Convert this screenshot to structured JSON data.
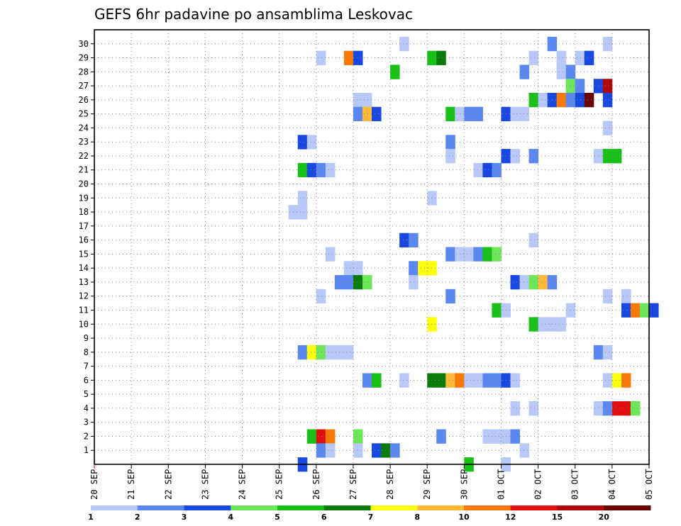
{
  "chart_data": {
    "type": "heatmap",
    "title": "GEFS 6hr padavine po ansamblima Leskovac",
    "xlabel": "",
    "ylabel": "",
    "x_ticks": [
      "20 SEP",
      "21 SEP",
      "22 SEP",
      "23 SEP",
      "24 SEP",
      "25 SEP",
      "26 SEP",
      "27 SEP",
      "28 SEP",
      "29 SEP",
      "30 SEP",
      "01 OCT",
      "02 OCT",
      "03 OCT",
      "04 OCT",
      "05 OCT"
    ],
    "y_ticks": [
      1,
      2,
      3,
      4,
      5,
      6,
      7,
      8,
      9,
      10,
      11,
      12,
      13,
      14,
      15,
      16,
      17,
      18,
      19,
      20,
      21,
      22,
      23,
      24,
      25,
      26,
      27,
      28,
      29,
      30
    ],
    "x_range_days": [
      0,
      15
    ],
    "y_range": [
      0,
      30
    ],
    "grid": true,
    "steps_per_day": 4,
    "levels": [
      1,
      2,
      3,
      4,
      5,
      6,
      7,
      8,
      10,
      12,
      15,
      20
    ],
    "level_labels": [
      "1",
      "2",
      "3",
      "4",
      "5",
      "6",
      "7",
      "8",
      "10",
      "12",
      "15",
      "20"
    ],
    "colors": [
      "#b8c8f8",
      "#5a88f0",
      "#1848e0",
      "#6ee65a",
      "#18c018",
      "#0a7a0a",
      "#ffff10",
      "#ffb838",
      "#f87808",
      "#e01010",
      "#b00808",
      "#6a0404"
    ],
    "legend_position": "bottom",
    "cells": [
      {
        "member": 30,
        "step": 33,
        "class": 0
      },
      {
        "member": 30,
        "step": 49,
        "class": 1
      },
      {
        "member": 30,
        "step": 55,
        "class": 0
      },
      {
        "member": 29,
        "step": 24,
        "class": 0
      },
      {
        "member": 29,
        "step": 27,
        "class": 8
      },
      {
        "member": 29,
        "step": 28,
        "class": 2
      },
      {
        "member": 29,
        "step": 36,
        "class": 4
      },
      {
        "member": 29,
        "step": 37,
        "class": 5
      },
      {
        "member": 29,
        "step": 47,
        "class": 0
      },
      {
        "member": 29,
        "step": 50,
        "class": 0
      },
      {
        "member": 29,
        "step": 52,
        "class": 0
      },
      {
        "member": 29,
        "step": 53,
        "class": 2
      },
      {
        "member": 28,
        "step": 32,
        "class": 4
      },
      {
        "member": 28,
        "step": 46,
        "class": 1
      },
      {
        "member": 28,
        "step": 50,
        "class": 0
      },
      {
        "member": 28,
        "step": 51,
        "class": 1
      },
      {
        "member": 27,
        "step": 51,
        "class": 3
      },
      {
        "member": 27,
        "step": 52,
        "class": 1
      },
      {
        "member": 27,
        "step": 54,
        "class": 2
      },
      {
        "member": 27,
        "step": 55,
        "class": 10
      },
      {
        "member": 26,
        "step": 28,
        "class": 0
      },
      {
        "member": 26,
        "step": 29,
        "class": 0
      },
      {
        "member": 26,
        "step": 47,
        "class": 4
      },
      {
        "member": 26,
        "step": 48,
        "class": 0
      },
      {
        "member": 26,
        "step": 49,
        "class": 2
      },
      {
        "member": 26,
        "step": 50,
        "class": 8
      },
      {
        "member": 26,
        "step": 51,
        "class": 1
      },
      {
        "member": 26,
        "step": 52,
        "class": 2
      },
      {
        "member": 26,
        "step": 53,
        "class": 11
      },
      {
        "member": 26,
        "step": 55,
        "class": 2
      },
      {
        "member": 25,
        "step": 28,
        "class": 1
      },
      {
        "member": 25,
        "step": 29,
        "class": 7
      },
      {
        "member": 25,
        "step": 30,
        "class": 2
      },
      {
        "member": 25,
        "step": 38,
        "class": 4
      },
      {
        "member": 25,
        "step": 39,
        "class": 0
      },
      {
        "member": 25,
        "step": 40,
        "class": 1
      },
      {
        "member": 25,
        "step": 41,
        "class": 1
      },
      {
        "member": 25,
        "step": 44,
        "class": 2
      },
      {
        "member": 25,
        "step": 45,
        "class": 0
      },
      {
        "member": 25,
        "step": 46,
        "class": 0
      },
      {
        "member": 24,
        "step": 55,
        "class": 0
      },
      {
        "member": 23,
        "step": 22,
        "class": 2
      },
      {
        "member": 23,
        "step": 23,
        "class": 0
      },
      {
        "member": 23,
        "step": 38,
        "class": 1
      },
      {
        "member": 22,
        "step": 38,
        "class": 0
      },
      {
        "member": 22,
        "step": 44,
        "class": 2
      },
      {
        "member": 22,
        "step": 45,
        "class": 0
      },
      {
        "member": 22,
        "step": 47,
        "class": 1
      },
      {
        "member": 22,
        "step": 54,
        "class": 0
      },
      {
        "member": 22,
        "step": 55,
        "class": 4
      },
      {
        "member": 22,
        "step": 56,
        "class": 4
      },
      {
        "member": 21,
        "step": 22,
        "class": 4
      },
      {
        "member": 21,
        "step": 23,
        "class": 2
      },
      {
        "member": 21,
        "step": 24,
        "class": 1
      },
      {
        "member": 21,
        "step": 25,
        "class": 0
      },
      {
        "member": 21,
        "step": 41,
        "class": 0
      },
      {
        "member": 21,
        "step": 42,
        "class": 2
      },
      {
        "member": 21,
        "step": 43,
        "class": 1
      },
      {
        "member": 19,
        "step": 22,
        "class": 0
      },
      {
        "member": 19,
        "step": 36,
        "class": 0
      },
      {
        "member": 18,
        "step": 21,
        "class": 0
      },
      {
        "member": 18,
        "step": 22,
        "class": 0
      },
      {
        "member": 16,
        "step": 33,
        "class": 2
      },
      {
        "member": 16,
        "step": 34,
        "class": 1
      },
      {
        "member": 16,
        "step": 47,
        "class": 0
      },
      {
        "member": 15,
        "step": 25,
        "class": 0
      },
      {
        "member": 15,
        "step": 38,
        "class": 1
      },
      {
        "member": 15,
        "step": 39,
        "class": 0
      },
      {
        "member": 15,
        "step": 40,
        "class": 0
      },
      {
        "member": 15,
        "step": 41,
        "class": 1
      },
      {
        "member": 15,
        "step": 42,
        "class": 4
      },
      {
        "member": 15,
        "step": 43,
        "class": 3
      },
      {
        "member": 14,
        "step": 27,
        "class": 0
      },
      {
        "member": 14,
        "step": 28,
        "class": 0
      },
      {
        "member": 14,
        "step": 34,
        "class": 1
      },
      {
        "member": 14,
        "step": 35,
        "class": 6
      },
      {
        "member": 14,
        "step": 36,
        "class": 6
      },
      {
        "member": 13,
        "step": 26,
        "class": 1
      },
      {
        "member": 13,
        "step": 27,
        "class": 1
      },
      {
        "member": 13,
        "step": 28,
        "class": 5
      },
      {
        "member": 13,
        "step": 29,
        "class": 3
      },
      {
        "member": 13,
        "step": 34,
        "class": 0
      },
      {
        "member": 13,
        "step": 45,
        "class": 2
      },
      {
        "member": 13,
        "step": 46,
        "class": 0
      },
      {
        "member": 13,
        "step": 47,
        "class": 3
      },
      {
        "member": 13,
        "step": 48,
        "class": 7
      },
      {
        "member": 13,
        "step": 49,
        "class": 1
      },
      {
        "member": 12,
        "step": 24,
        "class": 0
      },
      {
        "member": 12,
        "step": 38,
        "class": 1
      },
      {
        "member": 12,
        "step": 55,
        "class": 0
      },
      {
        "member": 12,
        "step": 57,
        "class": 0
      },
      {
        "member": 11,
        "step": 43,
        "class": 4
      },
      {
        "member": 11,
        "step": 44,
        "class": 0
      },
      {
        "member": 11,
        "step": 51,
        "class": 0
      },
      {
        "member": 11,
        "step": 57,
        "class": 2
      },
      {
        "member": 11,
        "step": 58,
        "class": 8
      },
      {
        "member": 11,
        "step": 59,
        "class": 3
      },
      {
        "member": 11,
        "step": 60,
        "class": 2
      },
      {
        "member": 10,
        "step": 36,
        "class": 6
      },
      {
        "member": 10,
        "step": 47,
        "class": 4
      },
      {
        "member": 10,
        "step": 48,
        "class": 0
      },
      {
        "member": 10,
        "step": 49,
        "class": 0
      },
      {
        "member": 10,
        "step": 50,
        "class": 0
      },
      {
        "member": 8,
        "step": 22,
        "class": 1
      },
      {
        "member": 8,
        "step": 23,
        "class": 6
      },
      {
        "member": 8,
        "step": 24,
        "class": 3
      },
      {
        "member": 8,
        "step": 25,
        "class": 0
      },
      {
        "member": 8,
        "step": 26,
        "class": 0
      },
      {
        "member": 8,
        "step": 27,
        "class": 0
      },
      {
        "member": 8,
        "step": 54,
        "class": 1
      },
      {
        "member": 8,
        "step": 55,
        "class": 0
      },
      {
        "member": 6,
        "step": 29,
        "class": 1
      },
      {
        "member": 6,
        "step": 30,
        "class": 4
      },
      {
        "member": 6,
        "step": 33,
        "class": 0
      },
      {
        "member": 6,
        "step": 36,
        "class": 5
      },
      {
        "member": 6,
        "step": 37,
        "class": 5
      },
      {
        "member": 6,
        "step": 38,
        "class": 7
      },
      {
        "member": 6,
        "step": 39,
        "class": 8
      },
      {
        "member": 6,
        "step": 40,
        "class": 0
      },
      {
        "member": 6,
        "step": 41,
        "class": 0
      },
      {
        "member": 6,
        "step": 42,
        "class": 1
      },
      {
        "member": 6,
        "step": 43,
        "class": 1
      },
      {
        "member": 6,
        "step": 44,
        "class": 2
      },
      {
        "member": 6,
        "step": 45,
        "class": 0
      },
      {
        "member": 6,
        "step": 55,
        "class": 0
      },
      {
        "member": 6,
        "step": 56,
        "class": 6
      },
      {
        "member": 6,
        "step": 57,
        "class": 8
      },
      {
        "member": 4,
        "step": 45,
        "class": 0
      },
      {
        "member": 4,
        "step": 47,
        "class": 0
      },
      {
        "member": 4,
        "step": 54,
        "class": 0
      },
      {
        "member": 4,
        "step": 55,
        "class": 1
      },
      {
        "member": 4,
        "step": 56,
        "class": 9
      },
      {
        "member": 4,
        "step": 57,
        "class": 9
      },
      {
        "member": 4,
        "step": 58,
        "class": 3
      },
      {
        "member": 2,
        "step": 23,
        "class": 4
      },
      {
        "member": 2,
        "step": 24,
        "class": 9
      },
      {
        "member": 2,
        "step": 25,
        "class": 8
      },
      {
        "member": 2,
        "step": 28,
        "class": 3
      },
      {
        "member": 2,
        "step": 37,
        "class": 1
      },
      {
        "member": 2,
        "step": 42,
        "class": 0
      },
      {
        "member": 2,
        "step": 43,
        "class": 0
      },
      {
        "member": 2,
        "step": 44,
        "class": 0
      },
      {
        "member": 2,
        "step": 45,
        "class": 1
      },
      {
        "member": 1,
        "step": 24,
        "class": 1
      },
      {
        "member": 1,
        "step": 25,
        "class": 0
      },
      {
        "member": 1,
        "step": 28,
        "class": 0
      },
      {
        "member": 1,
        "step": 30,
        "class": 2
      },
      {
        "member": 1,
        "step": 31,
        "class": 5
      },
      {
        "member": 1,
        "step": 32,
        "class": 1
      },
      {
        "member": 1,
        "step": 46,
        "class": 0
      },
      {
        "member": 0,
        "step": 22,
        "class": 2
      },
      {
        "member": 0,
        "step": 40,
        "class": 4
      },
      {
        "member": 0,
        "step": 44,
        "class": 0
      }
    ]
  }
}
